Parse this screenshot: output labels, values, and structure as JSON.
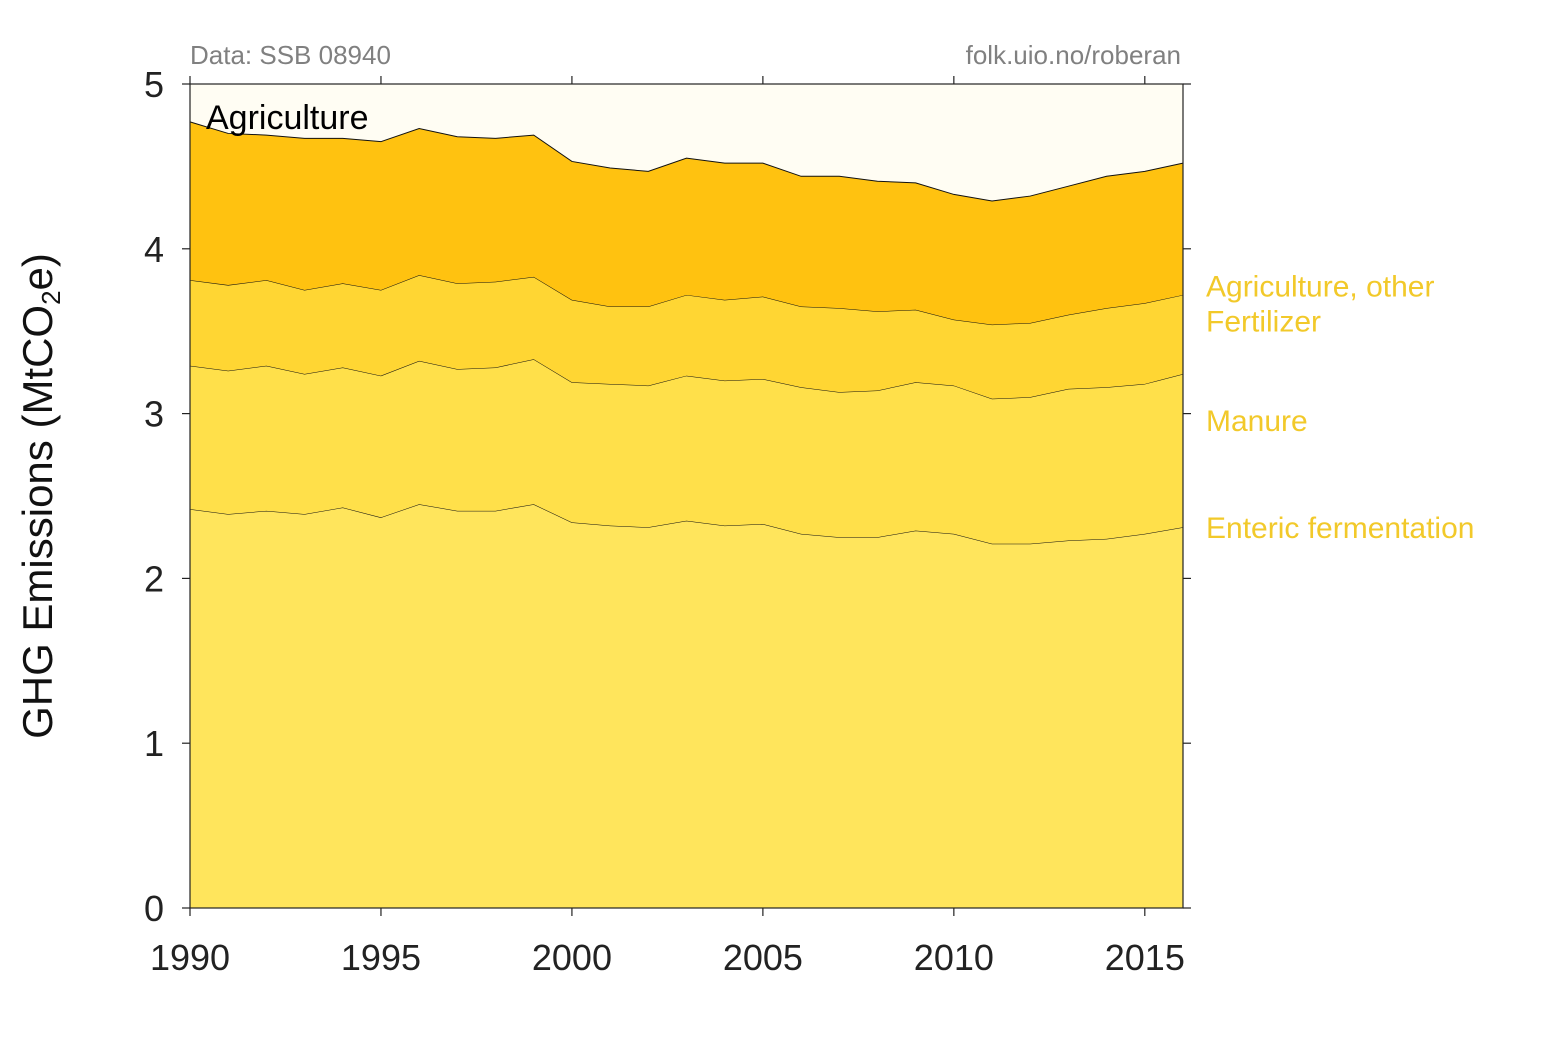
{
  "chart_data": {
    "type": "area",
    "stacked": true,
    "title": "Agriculture",
    "source_note": "Data: SSB 08940",
    "credit": "folk.uio.no/roberan",
    "ylabel_text": "GHG Emissions (MtCO",
    "ylabel_sub": "2",
    "ylabel_end": "e)",
    "xlim": [
      1990,
      2016
    ],
    "ylim": [
      0,
      5
    ],
    "x_ticks": [
      1990,
      1995,
      2000,
      2005,
      2010,
      2015
    ],
    "y_ticks": [
      0,
      1,
      2,
      3,
      4,
      5
    ],
    "x": [
      1990,
      1991,
      1992,
      1993,
      1994,
      1995,
      1996,
      1997,
      1998,
      1999,
      2000,
      2001,
      2002,
      2003,
      2004,
      2005,
      2006,
      2007,
      2008,
      2009,
      2010,
      2011,
      2012,
      2013,
      2014,
      2015,
      2016
    ],
    "series": [
      {
        "name": "Enteric fermentation",
        "color": "#FFE55C",
        "values": [
          2.42,
          2.39,
          2.41,
          2.39,
          2.43,
          2.37,
          2.45,
          2.41,
          2.41,
          2.45,
          2.34,
          2.32,
          2.31,
          2.35,
          2.32,
          2.33,
          2.27,
          2.25,
          2.25,
          2.29,
          2.27,
          2.21,
          2.21,
          2.23,
          2.24,
          2.27,
          2.31
        ]
      },
      {
        "name": "Manure",
        "color": "#FFE04A",
        "values": [
          0.87,
          0.87,
          0.88,
          0.85,
          0.85,
          0.86,
          0.87,
          0.86,
          0.87,
          0.88,
          0.85,
          0.86,
          0.86,
          0.88,
          0.88,
          0.88,
          0.89,
          0.88,
          0.89,
          0.9,
          0.9,
          0.88,
          0.89,
          0.92,
          0.92,
          0.91,
          0.93
        ]
      },
      {
        "name": "Fertilizer",
        "color": "#FFD633",
        "values": [
          0.52,
          0.52,
          0.52,
          0.51,
          0.51,
          0.52,
          0.52,
          0.52,
          0.52,
          0.5,
          0.5,
          0.47,
          0.48,
          0.49,
          0.49,
          0.5,
          0.49,
          0.51,
          0.48,
          0.44,
          0.4,
          0.45,
          0.45,
          0.45,
          0.48,
          0.49,
          0.48
        ]
      },
      {
        "name": "Agriculture, other",
        "color": "#FFC210",
        "values": [
          0.96,
          0.92,
          0.88,
          0.92,
          0.88,
          0.9,
          0.89,
          0.89,
          0.87,
          0.86,
          0.84,
          0.84,
          0.82,
          0.83,
          0.83,
          0.81,
          0.79,
          0.8,
          0.79,
          0.77,
          0.76,
          0.75,
          0.77,
          0.78,
          0.8,
          0.8,
          0.8
        ]
      }
    ],
    "background_color": "#FFFDF3",
    "grid": false,
    "legend": "right-inline"
  }
}
